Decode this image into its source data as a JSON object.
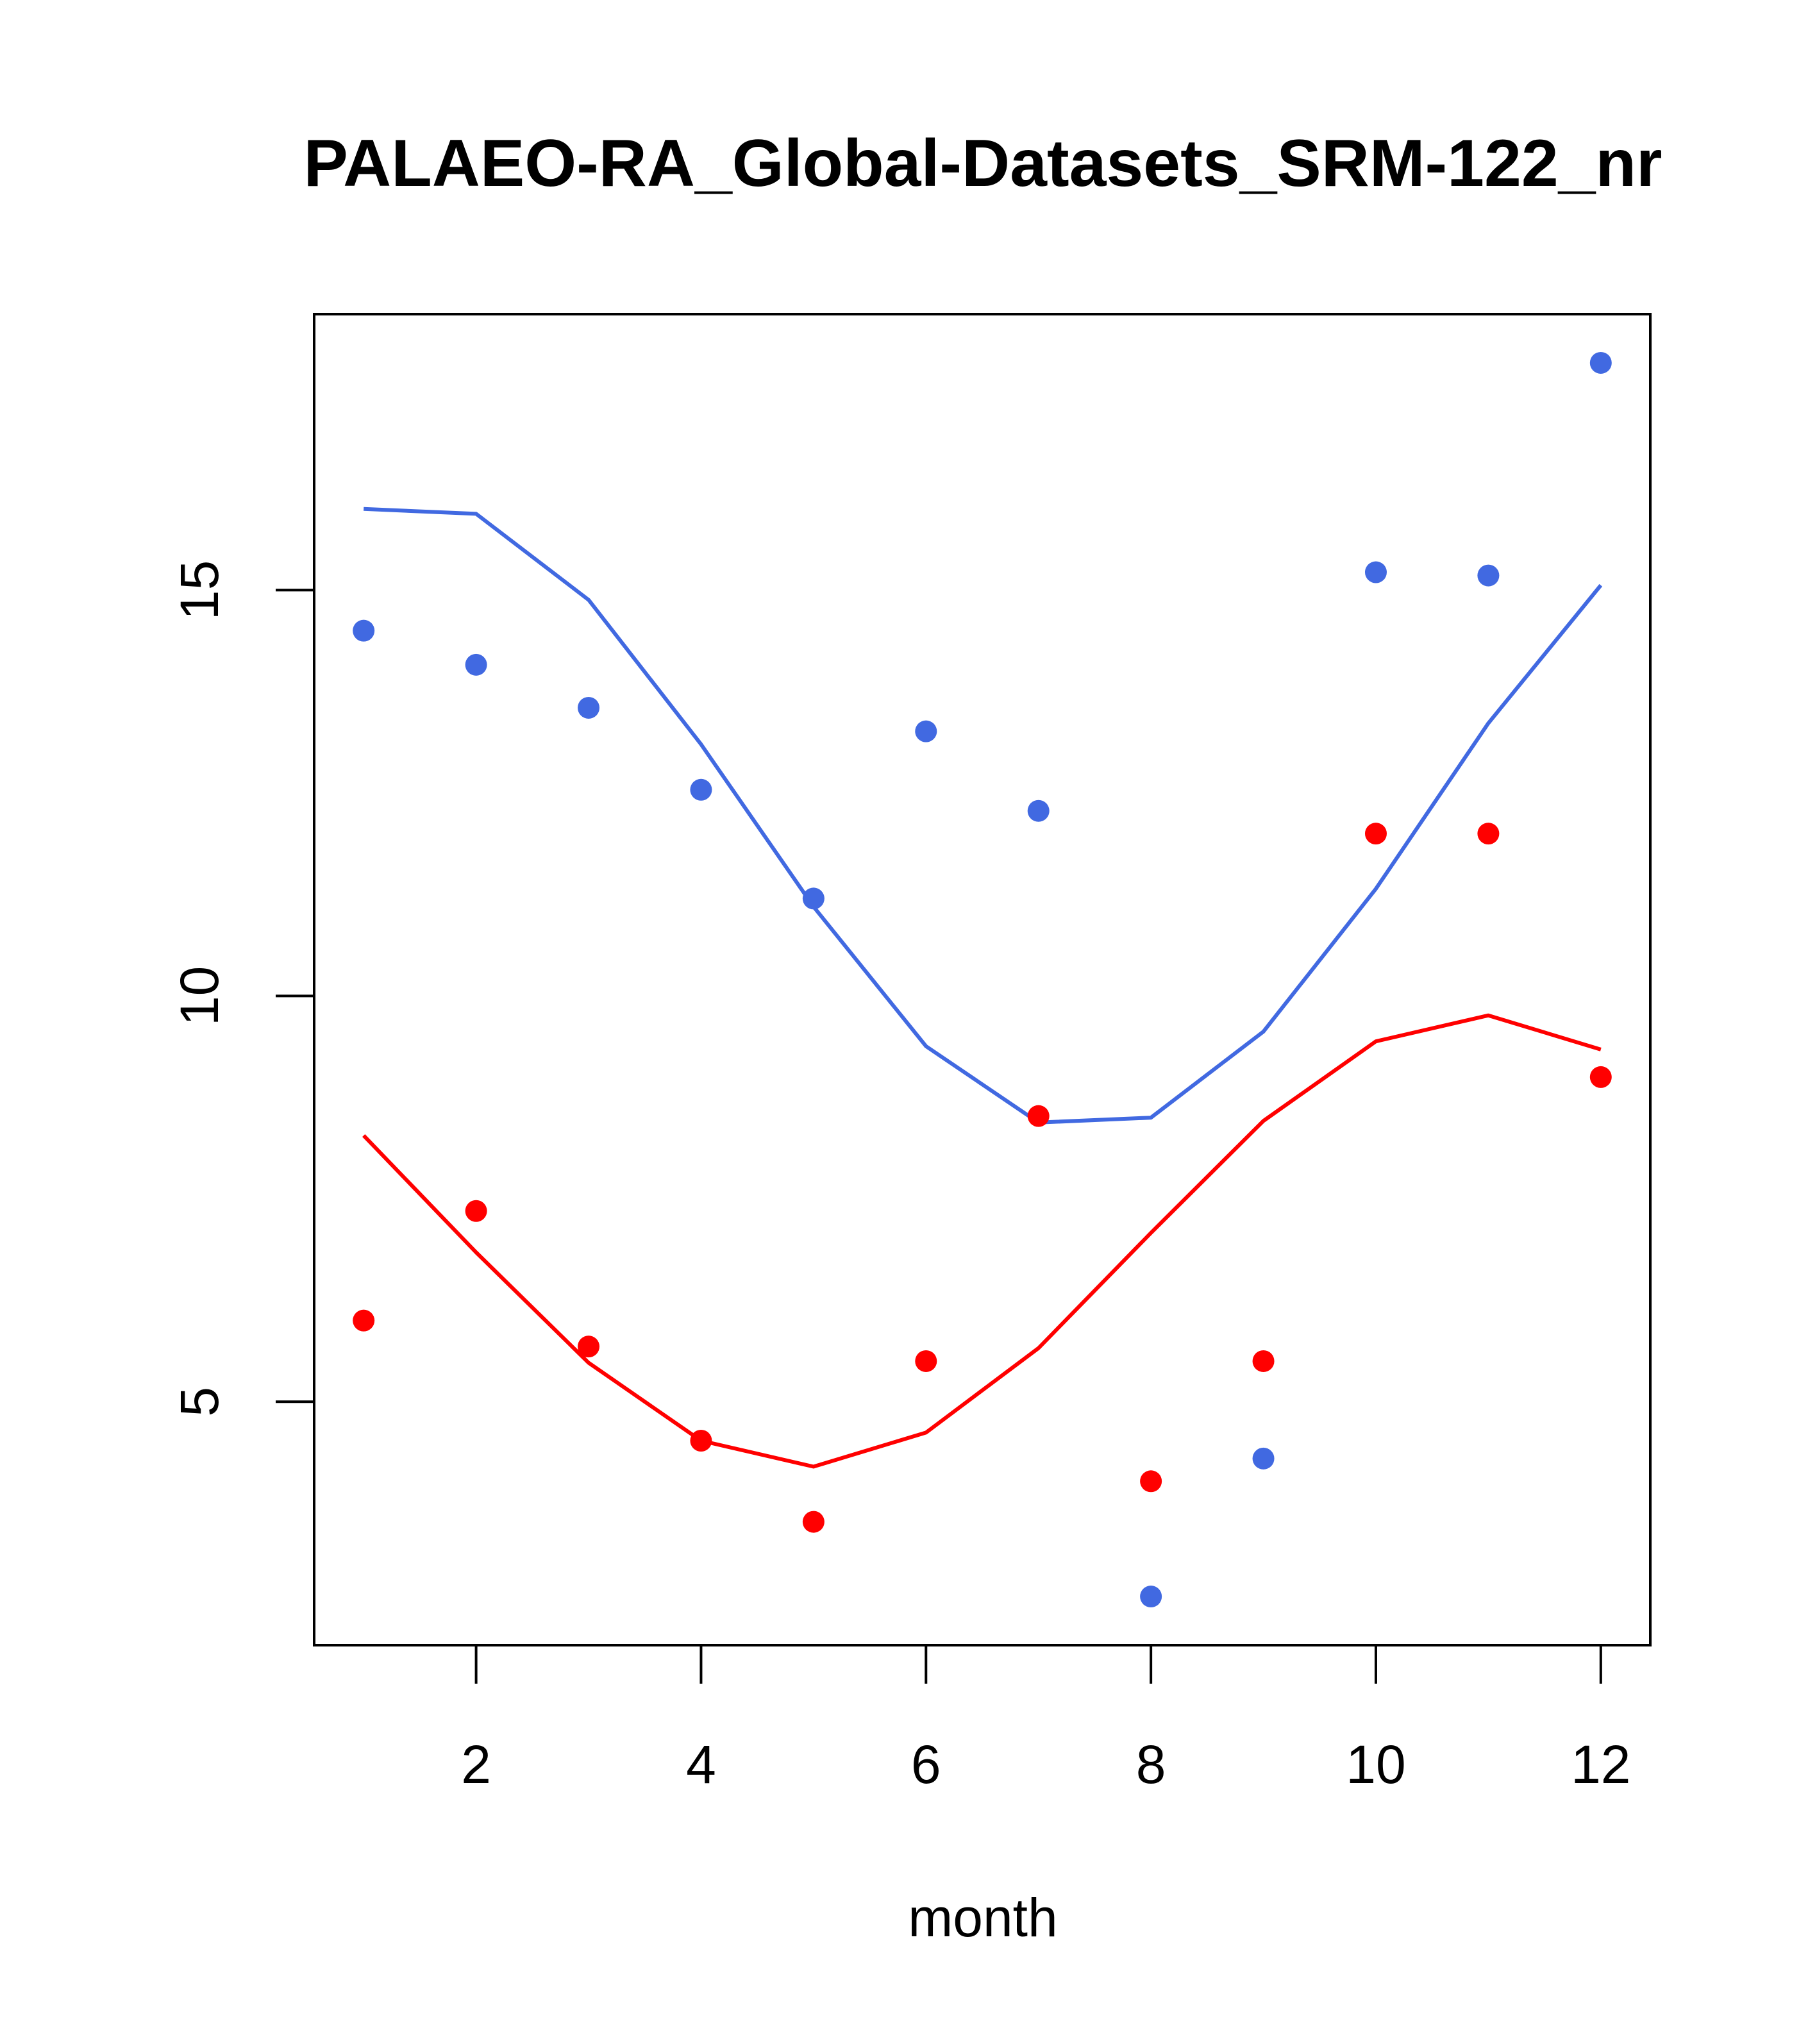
{
  "chart_data": {
    "type": "line",
    "title": "PALAEO-RA_Global-Datasets_SRM-122_nr",
    "xlabel": "month",
    "ylabel": "",
    "xlim": [
      0.56,
      12.44
    ],
    "ylim": [
      2.0,
      18.4
    ],
    "x_ticks": [
      2,
      4,
      6,
      8,
      10,
      12
    ],
    "x_tick_labels": [
      "2",
      "4",
      "6",
      "8",
      "10",
      "12"
    ],
    "y_ticks": [
      5,
      10,
      15
    ],
    "y_tick_labels": [
      "5",
      "10",
      "15"
    ],
    "grid": false,
    "x": [
      1,
      2,
      3,
      4,
      5,
      6,
      7,
      8,
      9,
      10,
      11,
      12
    ],
    "series": [
      {
        "name": "blue-line",
        "kind": "line",
        "color": "#4169E1",
        "values": [
          16.0,
          15.94,
          14.88,
          13.1,
          11.1,
          9.38,
          8.44,
          8.5,
          9.56,
          11.32,
          13.36,
          15.06
        ]
      },
      {
        "name": "blue-points",
        "kind": "points",
        "color": "#4169E1",
        "values": [
          14.5,
          14.08,
          13.55,
          12.54,
          11.2,
          13.26,
          12.28,
          2.6,
          4.3,
          15.22,
          15.18,
          17.8
        ]
      },
      {
        "name": "red-line",
        "kind": "line",
        "color": "#FF0000",
        "values": [
          8.28,
          6.84,
          5.48,
          4.52,
          4.2,
          4.62,
          5.66,
          7.08,
          8.46,
          9.44,
          9.76,
          9.34
        ]
      },
      {
        "name": "red-points",
        "kind": "points",
        "color": "#FF0000",
        "values": [
          6.0,
          7.35,
          5.68,
          4.52,
          3.52,
          5.5,
          8.52,
          4.02,
          5.5,
          12.0,
          12.0,
          9.0
        ]
      }
    ]
  }
}
